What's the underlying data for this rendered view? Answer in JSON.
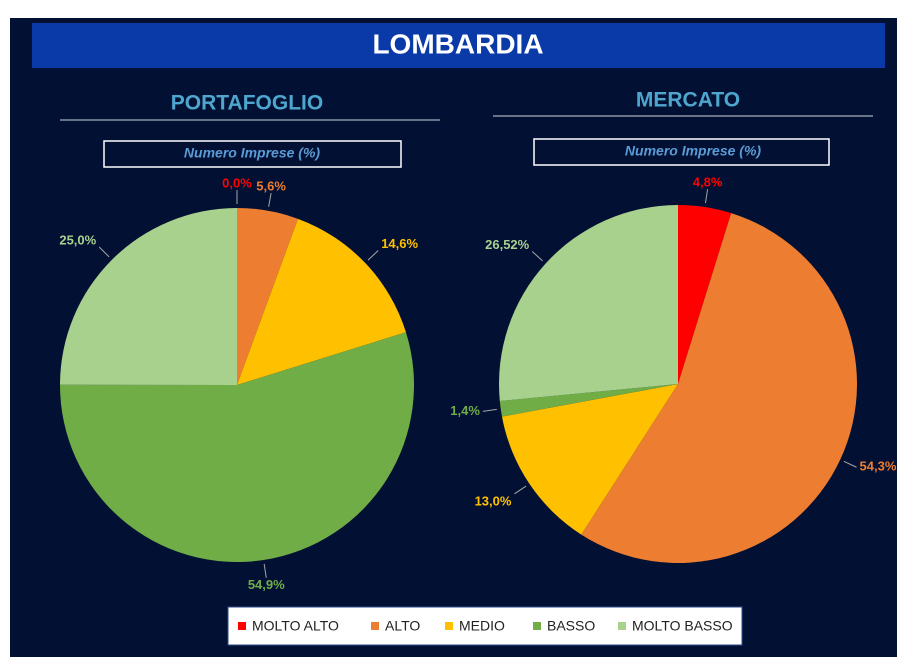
{
  "banner": "LOMBARDIA",
  "chart_data": [
    {
      "type": "pie",
      "title": "PORTAFOGLIO",
      "subtitle": "Numero Imprese (%)",
      "categories": [
        "MOLTO ALTO",
        "ALTO",
        "MEDIO",
        "BASSO",
        "MOLTO BASSO"
      ],
      "values": [
        0,
        5.6,
        14.6,
        54.9,
        25
      ],
      "value_labels": [
        "0,0%",
        "5,6%",
        "14,6%",
        "54,9%",
        "25,0%"
      ],
      "colors": [
        "#ff0000",
        "#ed7d31",
        "#ffc000",
        "#70ad47",
        "#a9d18e"
      ]
    },
    {
      "type": "pie",
      "title": "MERCATO",
      "subtitle": "Numero Imprese (%)",
      "categories": [
        "MOLTO ALTO",
        "ALTO",
        "MEDIO",
        "BASSO",
        "MOLTO BASSO"
      ],
      "values": [
        4.8,
        54.3,
        13,
        1.4,
        26.52
      ],
      "value_labels": [
        "4,8%",
        "54,3%",
        "13,0%",
        "1,4%",
        "26,52%"
      ],
      "colors": [
        "#ff0000",
        "#ed7d31",
        "#ffc000",
        "#70ad47",
        "#a9d18e"
      ]
    }
  ]
}
